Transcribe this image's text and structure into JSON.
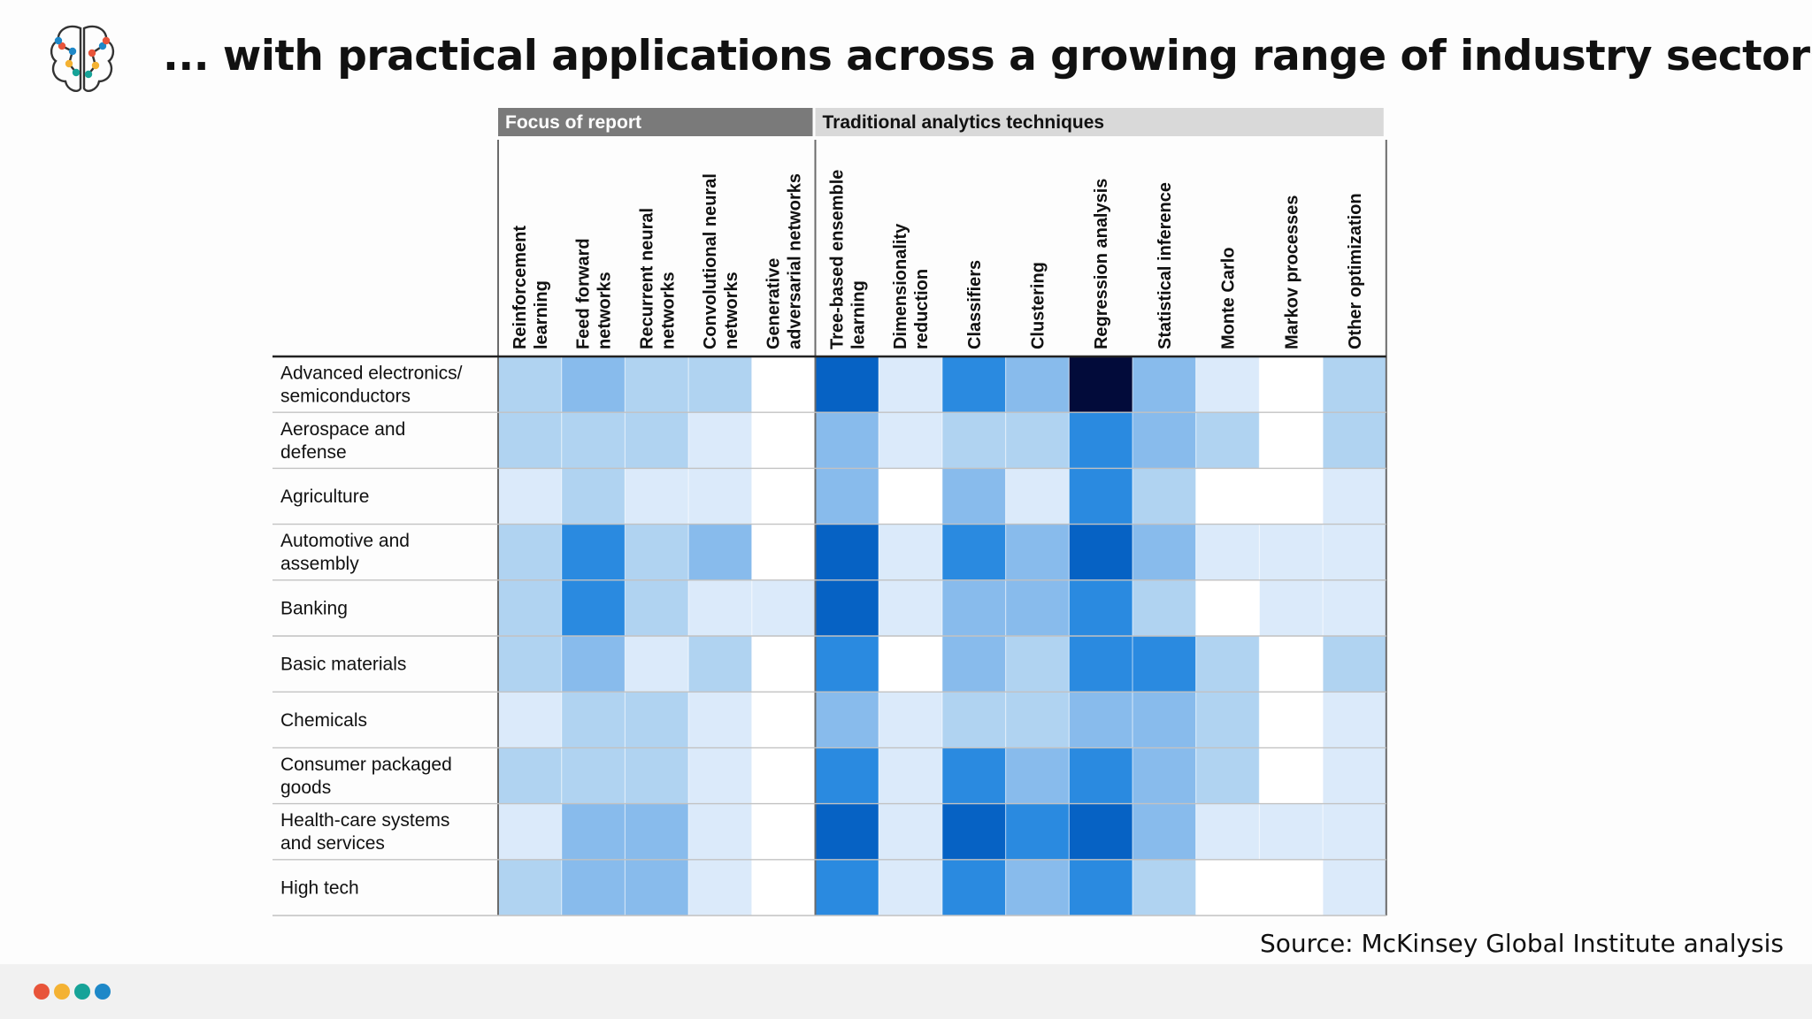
{
  "slide": {
    "title": "... with practical applications across a growing range of industry sectors",
    "source": "Source: McKinsey Global Institute analysis",
    "logo": {
      "icon": "brain-network-icon",
      "colors": [
        "#1e88c8",
        "#e8543a",
        "#f4b233",
        "#17a398"
      ]
    },
    "footer_dots": [
      "#e8543a",
      "#f4b233",
      "#17a398",
      "#1e88c8"
    ]
  },
  "chart_data": {
    "type": "heatmap",
    "title": "",
    "groups": [
      {
        "label": "Focus of report",
        "columns": 5,
        "color": "#7a7a7a",
        "text_color": "#ffffff"
      },
      {
        "label": "Traditional analytics techniques",
        "columns": 9,
        "color": "#d9d9d9",
        "text_color": "#111111"
      }
    ],
    "columns": [
      [
        "Reinforcement",
        "learning"
      ],
      [
        "Feed forward",
        "networks"
      ],
      [
        "Recurrent neural",
        "networks"
      ],
      [
        "Convolutional neural",
        "networks"
      ],
      [
        "Generative",
        "adversarial networks"
      ],
      [
        "Tree-based ensemble",
        "learning"
      ],
      [
        "Dimensionality",
        "reduction"
      ],
      [
        "Classifiers"
      ],
      [
        "Clustering"
      ],
      [
        "Regression analysis"
      ],
      [
        "Statistical inference"
      ],
      [
        "Monte Carlo"
      ],
      [
        "Markov processes"
      ],
      [
        "Other optimization"
      ]
    ],
    "rows": [
      [
        "Advanced electronics/",
        "semiconductors"
      ],
      [
        "Aerospace and",
        "defense"
      ],
      [
        "Agriculture"
      ],
      [
        "Automotive and",
        "assembly"
      ],
      [
        "Banking"
      ],
      [
        "Basic materials"
      ],
      [
        "Chemicals"
      ],
      [
        "Consumer packaged",
        "goods"
      ],
      [
        "Health-care systems",
        "and services"
      ],
      [
        "High tech"
      ]
    ],
    "value_scale": "0 = white (lowest) to 6 = navy (highest)",
    "palette": [
      "#ffffff",
      "#dbeafa",
      "#b0d3f1",
      "#88bbec",
      "#2a8ae0",
      "#0662c4",
      "#020b3a"
    ],
    "values": [
      [
        2,
        3,
        2,
        2,
        0,
        5,
        1,
        4,
        3,
        6,
        3,
        1,
        0,
        2
      ],
      [
        2,
        2,
        2,
        1,
        0,
        3,
        1,
        2,
        2,
        4,
        3,
        2,
        0,
        2
      ],
      [
        1,
        2,
        1,
        1,
        0,
        3,
        0,
        3,
        1,
        4,
        2,
        0,
        0,
        1
      ],
      [
        2,
        4,
        2,
        3,
        0,
        5,
        1,
        4,
        3,
        5,
        3,
        1,
        1,
        1
      ],
      [
        2,
        4,
        2,
        1,
        1,
        5,
        1,
        3,
        3,
        4,
        2,
        0,
        1,
        1
      ],
      [
        2,
        3,
        1,
        2,
        0,
        4,
        0,
        3,
        2,
        4,
        4,
        2,
        0,
        2
      ],
      [
        1,
        2,
        2,
        1,
        0,
        3,
        1,
        2,
        2,
        3,
        3,
        2,
        0,
        1
      ],
      [
        2,
        2,
        2,
        1,
        0,
        4,
        1,
        4,
        3,
        4,
        3,
        2,
        0,
        1
      ],
      [
        1,
        3,
        3,
        1,
        0,
        5,
        1,
        5,
        4,
        5,
        3,
        1,
        1,
        1
      ],
      [
        2,
        3,
        3,
        1,
        0,
        4,
        1,
        4,
        3,
        4,
        2,
        0,
        0,
        1
      ]
    ]
  }
}
